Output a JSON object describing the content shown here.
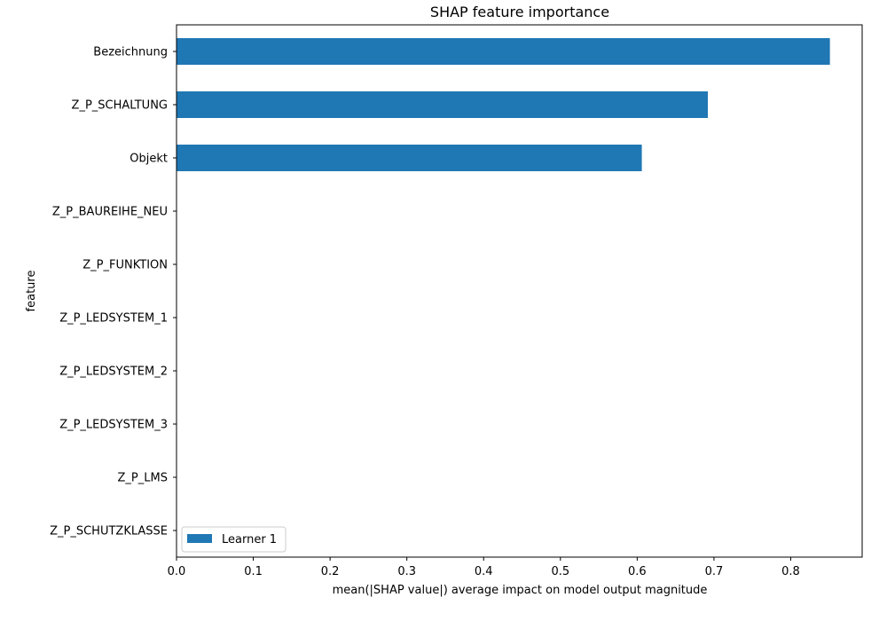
{
  "chart_data": {
    "type": "bar",
    "orientation": "horizontal",
    "title": "SHAP feature importance",
    "xlabel": "mean(|SHAP value|) average impact on model output magnitude",
    "ylabel": "feature",
    "categories": [
      "Bezeichnung",
      "Z_P_SCHALTUNG",
      "Objekt",
      "Z_P_BAUREIHE_NEU",
      "Z_P_FUNKTION",
      "Z_P_LEDSYSTEM_1",
      "Z_P_LEDSYSTEM_2",
      "Z_P_LEDSYSTEM_3",
      "Z_P_LMS",
      "Z_P_SCHUTZKLASSE"
    ],
    "series": [
      {
        "name": "Learner 1",
        "values": [
          0.851,
          0.692,
          0.606,
          0,
          0,
          0,
          0,
          0,
          0,
          0
        ],
        "color": "#1f77b4"
      }
    ],
    "xlim": [
      0,
      0.893
    ],
    "xticks": [
      0.0,
      0.1,
      0.2,
      0.3,
      0.4,
      0.5,
      0.6,
      0.7,
      0.8
    ],
    "xtick_labels": [
      "0.0",
      "0.1",
      "0.2",
      "0.3",
      "0.4",
      "0.5",
      "0.6",
      "0.7",
      "0.8"
    ],
    "grid": false,
    "legend_position": "lower-left"
  }
}
